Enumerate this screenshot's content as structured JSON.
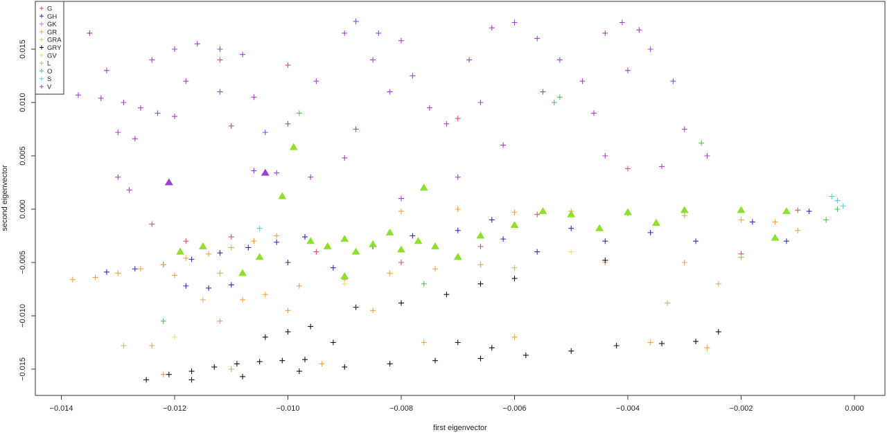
{
  "chart_data": {
    "type": "scatter",
    "title": "",
    "xlabel": "first eigenvector",
    "ylabel": "second eigenvector",
    "xlim": [
      -0.0145,
      0.0005
    ],
    "ylim": [
      -0.0175,
      0.0195
    ],
    "xticks": [
      "-0.014",
      "-0.012",
      "-0.010",
      "-0.008",
      "-0.006",
      "-0.004",
      "-0.002",
      "0.000"
    ],
    "xtick_values": [
      -0.014,
      -0.012,
      -0.01,
      -0.008,
      -0.006,
      -0.004,
      -0.002,
      0.0
    ],
    "yticks": [
      "-0.015",
      "-0.010",
      "-0.005",
      "0.000",
      "0.005",
      "0.010",
      "0.015"
    ],
    "ytick_values": [
      -0.015,
      -0.01,
      -0.005,
      0.0,
      0.005,
      0.01,
      0.015
    ],
    "grid": false,
    "legend_position": "top-left",
    "marker": "plus",
    "series": [
      {
        "name": "G",
        "color": "#e0505a",
        "points": [
          [
            -0.0118,
            -0.003
          ],
          [
            -0.011,
            -0.0026
          ],
          [
            -0.0095,
            -0.004
          ],
          [
            -0.008,
            -0.005
          ],
          [
            -0.0066,
            -0.0035
          ],
          [
            -0.0056,
            -0.0005
          ],
          [
            -0.001,
            -0.0001
          ],
          [
            -0.002,
            -0.0042
          ],
          [
            -0.0112,
            0.014
          ],
          [
            -0.01,
            0.0135
          ],
          [
            -0.007,
            0.0085
          ],
          [
            -0.004,
            0.0038
          ],
          [
            -0.0124,
            -0.0014
          ]
        ]
      },
      {
        "name": "GH",
        "color": "#2a2ac0",
        "points": [
          [
            -0.0132,
            -0.0059
          ],
          [
            -0.0127,
            -0.0056
          ],
          [
            -0.0122,
            -0.0052
          ],
          [
            -0.0117,
            -0.0047
          ],
          [
            -0.0112,
            -0.0041
          ],
          [
            -0.0107,
            -0.0036
          ],
          [
            -0.0102,
            -0.0031
          ],
          [
            -0.0097,
            -0.0026
          ],
          [
            -0.0118,
            -0.0072
          ],
          [
            -0.0114,
            -0.0074
          ],
          [
            -0.011,
            -0.0071
          ],
          [
            -0.01,
            -0.005
          ],
          [
            -0.0092,
            -0.0055
          ],
          [
            -0.0085,
            -0.0035
          ],
          [
            -0.0078,
            -0.0025
          ],
          [
            -0.007,
            -0.002
          ],
          [
            -0.0062,
            -0.0028
          ],
          [
            -0.0056,
            -0.004
          ],
          [
            -0.005,
            -0.0018
          ],
          [
            -0.0044,
            -0.003
          ],
          [
            -0.0036,
            -0.0022
          ],
          [
            -0.0028,
            -0.003
          ],
          [
            -0.0018,
            -0.0012
          ],
          [
            -0.0012,
            -0.003
          ],
          [
            -0.0008,
            -0.0002
          ],
          [
            -0.0064,
            -0.001
          ]
        ]
      },
      {
        "name": "GK",
        "color": "#b080d8",
        "points": []
      },
      {
        "name": "GR",
        "color": "#f0a040",
        "points": [
          [
            -0.0138,
            -0.0066
          ],
          [
            -0.0134,
            -0.0064
          ],
          [
            -0.013,
            -0.006
          ],
          [
            -0.0126,
            -0.0056
          ],
          [
            -0.0122,
            -0.0052
          ],
          [
            -0.0118,
            -0.0046
          ],
          [
            -0.0114,
            -0.0042
          ],
          [
            -0.011,
            -0.0036
          ],
          [
            -0.0106,
            -0.003
          ],
          [
            -0.0102,
            -0.0025
          ],
          [
            -0.012,
            -0.0062
          ],
          [
            -0.0112,
            -0.006
          ],
          [
            -0.0108,
            -0.0085
          ],
          [
            -0.0104,
            -0.008
          ],
          [
            -0.0098,
            -0.0072
          ],
          [
            -0.009,
            -0.0066
          ],
          [
            -0.0082,
            -0.006
          ],
          [
            -0.0074,
            -0.0056
          ],
          [
            -0.0066,
            -0.0052
          ],
          [
            -0.008,
            -0.0002
          ],
          [
            -0.007,
            0.0
          ],
          [
            -0.006,
            -0.0003
          ],
          [
            -0.005,
            -0.0002
          ],
          [
            -0.004,
            -0.0004
          ],
          [
            -0.003,
            -0.0006
          ],
          [
            -0.002,
            -0.001
          ],
          [
            -0.0014,
            -0.0012
          ],
          [
            -0.001,
            -0.002
          ],
          [
            -0.0044,
            -0.005
          ],
          [
            -0.003,
            -0.005
          ],
          [
            -0.002,
            -0.0045
          ],
          [
            -0.0122,
            -0.0155
          ],
          [
            -0.011,
            -0.015
          ],
          [
            -0.0094,
            -0.0145
          ],
          [
            -0.0076,
            -0.0125
          ],
          [
            -0.006,
            -0.012
          ],
          [
            -0.0026,
            -0.013
          ],
          [
            -0.0036,
            -0.0125
          ],
          [
            -0.01,
            -0.0095
          ],
          [
            -0.0085,
            -0.0095
          ],
          [
            -0.0112,
            -0.0105
          ],
          [
            -0.0124,
            -0.0128
          ]
        ]
      },
      {
        "name": "GRA",
        "color": "#b0e070",
        "points": []
      },
      {
        "name": "GRY",
        "color": "#111111",
        "points": [
          [
            -0.0125,
            -0.016
          ],
          [
            -0.0121,
            -0.0155
          ],
          [
            -0.0117,
            -0.0152
          ],
          [
            -0.0113,
            -0.0148
          ],
          [
            -0.0109,
            -0.0145
          ],
          [
            -0.0105,
            -0.0143
          ],
          [
            -0.0101,
            -0.0142
          ],
          [
            -0.0097,
            -0.0141
          ],
          [
            -0.0117,
            -0.016
          ],
          [
            -0.0108,
            -0.0157
          ],
          [
            -0.0098,
            -0.0152
          ],
          [
            -0.009,
            -0.0148
          ],
          [
            -0.0082,
            -0.0145
          ],
          [
            -0.0074,
            -0.0142
          ],
          [
            -0.0066,
            -0.014
          ],
          [
            -0.0058,
            -0.0137
          ],
          [
            -0.005,
            -0.0133
          ],
          [
            -0.0042,
            -0.0128
          ],
          [
            -0.0034,
            -0.0126
          ],
          [
            -0.0028,
            -0.0124
          ],
          [
            -0.0024,
            -0.0115
          ],
          [
            -0.007,
            -0.0125
          ],
          [
            -0.0064,
            -0.013
          ],
          [
            -0.01,
            -0.0115
          ],
          [
            -0.0096,
            -0.011
          ],
          [
            -0.0088,
            -0.0092
          ],
          [
            -0.008,
            -0.0088
          ],
          [
            -0.0072,
            -0.008
          ],
          [
            -0.0066,
            -0.007
          ],
          [
            -0.006,
            -0.0065
          ],
          [
            -0.0044,
            -0.0048
          ],
          [
            -0.0104,
            -0.012
          ],
          [
            -0.0092,
            -0.0125
          ]
        ]
      },
      {
        "name": "GV",
        "color": "#f0e070",
        "points": [
          [
            -0.012,
            -0.012
          ],
          [
            -0.009,
            -0.007
          ],
          [
            -0.005,
            -0.004
          ]
        ]
      },
      {
        "name": "L",
        "color": "#d8b080",
        "points": [
          [
            -0.006,
            -0.0055
          ],
          [
            -0.0033,
            -0.0088
          ],
          [
            -0.0024,
            -0.007
          ],
          [
            -0.0115,
            -0.0085
          ],
          [
            -0.0129,
            -0.0128
          ]
        ]
      },
      {
        "name": "O",
        "color": "#50c050",
        "points": [
          [
            -0.0122,
            -0.0105
          ],
          [
            -0.0098,
            0.009
          ],
          [
            -0.0053,
            0.01
          ],
          [
            -0.0052,
            0.0105
          ],
          [
            -0.0027,
            0.0062
          ],
          [
            -0.0005,
            -0.001
          ],
          [
            -0.0003,
            0.0
          ],
          [
            -0.0076,
            -0.007
          ]
        ]
      },
      {
        "name": "S",
        "color": "#60c8d0",
        "points": [
          [
            -0.0004,
            0.0012
          ],
          [
            -0.0003,
            0.0008
          ],
          [
            -0.0002,
            0.0003
          ],
          [
            -0.0105,
            -0.0018
          ]
        ]
      },
      {
        "name": "V",
        "color": "#a040d0",
        "points": [
          [
            -0.0137,
            0.0107
          ],
          [
            -0.0133,
            0.0104
          ],
          [
            -0.0129,
            0.01
          ],
          [
            -0.0126,
            0.0095
          ],
          [
            -0.0123,
            0.009
          ],
          [
            -0.012,
            0.0087
          ],
          [
            -0.013,
            0.0072
          ],
          [
            -0.0127,
            0.0066
          ],
          [
            -0.0124,
            0.014
          ],
          [
            -0.012,
            0.015
          ],
          [
            -0.0116,
            0.0155
          ],
          [
            -0.0112,
            0.015
          ],
          [
            -0.0108,
            0.0145
          ],
          [
            -0.0118,
            0.012
          ],
          [
            -0.0112,
            0.011
          ],
          [
            -0.0106,
            0.0105
          ],
          [
            -0.011,
            0.0078
          ],
          [
            -0.0104,
            0.0072
          ],
          [
            -0.01,
            0.008
          ],
          [
            -0.0106,
            0.0036
          ],
          [
            -0.0102,
            0.0034
          ],
          [
            -0.013,
            0.003
          ],
          [
            -0.0128,
            0.0018
          ],
          [
            -0.0095,
            0.012
          ],
          [
            -0.009,
            0.0165
          ],
          [
            -0.0088,
            0.0176
          ],
          [
            -0.0084,
            0.0165
          ],
          [
            -0.008,
            0.0158
          ],
          [
            -0.0085,
            0.014
          ],
          [
            -0.0078,
            0.0125
          ],
          [
            -0.0082,
            0.011
          ],
          [
            -0.0088,
            0.0075
          ],
          [
            -0.009,
            0.0048
          ],
          [
            -0.0072,
            0.008
          ],
          [
            -0.0075,
            0.0095
          ],
          [
            -0.0068,
            0.014
          ],
          [
            -0.0064,
            0.017
          ],
          [
            -0.006,
            0.0175
          ],
          [
            -0.0056,
            0.016
          ],
          [
            -0.0052,
            0.014
          ],
          [
            -0.0055,
            0.011
          ],
          [
            -0.0048,
            0.012
          ],
          [
            -0.0046,
            0.009
          ],
          [
            -0.0044,
            0.0165
          ],
          [
            -0.0041,
            0.0175
          ],
          [
            -0.0038,
            0.0168
          ],
          [
            -0.0036,
            0.015
          ],
          [
            -0.0032,
            0.012
          ],
          [
            -0.003,
            0.0075
          ],
          [
            -0.0026,
            0.005
          ],
          [
            -0.0034,
            0.004
          ],
          [
            -0.0044,
            0.005
          ],
          [
            -0.0062,
            0.006
          ],
          [
            -0.007,
            0.003
          ],
          [
            -0.008,
            0.001
          ],
          [
            -0.004,
            0.013
          ],
          [
            -0.0135,
            0.0165
          ],
          [
            -0.0132,
            0.013
          ],
          [
            -0.0096,
            0.003
          ],
          [
            -0.0066,
            0.01
          ]
        ]
      }
    ],
    "highlighted": [
      {
        "marker": "triangle",
        "color": "#8ee02c",
        "points": [
          [
            -0.0096,
            -0.003
          ],
          [
            -0.0093,
            -0.0035
          ],
          [
            -0.009,
            -0.0028
          ],
          [
            -0.0088,
            -0.004
          ],
          [
            -0.0085,
            -0.0033
          ],
          [
            -0.0082,
            -0.0022
          ],
          [
            -0.008,
            -0.0038
          ],
          [
            -0.0077,
            -0.003
          ],
          [
            -0.0074,
            -0.0035
          ],
          [
            -0.007,
            -0.0045
          ],
          [
            -0.0066,
            -0.0025
          ],
          [
            -0.006,
            -0.0015
          ],
          [
            -0.0055,
            -0.0002
          ],
          [
            -0.005,
            -0.0005
          ],
          [
            -0.0045,
            -0.0018
          ],
          [
            -0.004,
            -0.0003
          ],
          [
            -0.0035,
            -0.0013
          ],
          [
            -0.003,
            -0.0001
          ],
          [
            -0.002,
            -0.0001
          ],
          [
            -0.0012,
            -0.0002
          ],
          [
            -0.0105,
            -0.0045
          ],
          [
            -0.0108,
            -0.006
          ],
          [
            -0.0101,
            0.0012
          ],
          [
            -0.0099,
            0.0058
          ],
          [
            -0.0076,
            0.002
          ],
          [
            -0.009,
            -0.0063
          ],
          [
            -0.0119,
            -0.004
          ],
          [
            -0.0115,
            -0.0035
          ],
          [
            -0.0014,
            -0.0027
          ]
        ]
      },
      {
        "marker": "triangle",
        "color": "#a040d0",
        "points": [
          [
            -0.0121,
            0.0025
          ],
          [
            -0.0104,
            0.0034
          ]
        ]
      }
    ]
  }
}
